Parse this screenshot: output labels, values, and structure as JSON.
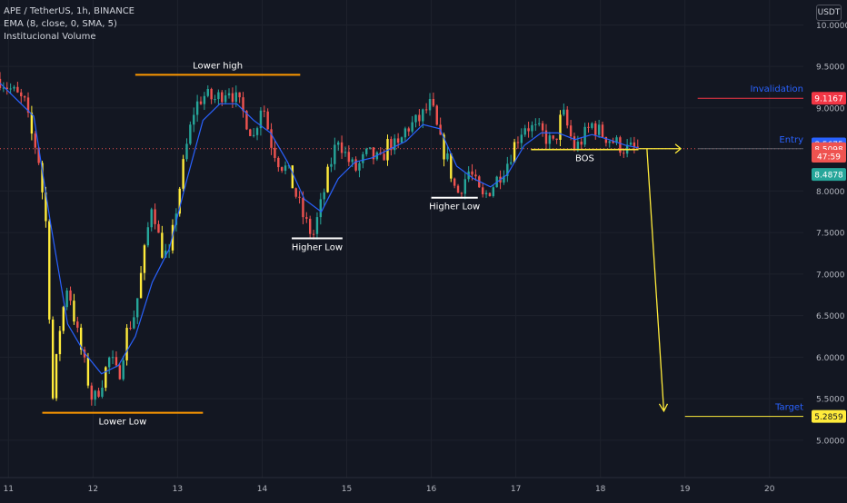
{
  "legend": {
    "symbol_line": "APE / TetherUS, 1h, BINANCE",
    "ema_line": "EMA (8, close, 0, SMA, 5)",
    "volume_line": "Institucional Volume"
  },
  "unit_label": "USDT",
  "colors": {
    "background": "#131722",
    "grid": "#1e222d",
    "up": "#26a69a",
    "down": "#ef5350",
    "highlight": "#ffeb3b",
    "ema": "#2962ff",
    "level": "#ff9800",
    "projection": "#ffeb3b",
    "invalidation": "#f23645",
    "price_line": "#ef5350"
  },
  "chart_data": {
    "type": "candlestick",
    "title": "APE / TetherUS, 1h, BINANCE",
    "x_ticks": [
      "11",
      "12",
      "13",
      "14",
      "15",
      "16",
      "17",
      "18",
      "19",
      "20"
    ],
    "y_ticks": [
      "10.0000",
      "9.5000",
      "9.0000",
      "8.0000",
      "7.5000",
      "7.0000",
      "6.5000",
      "6.0000",
      "5.5000",
      "5.0000"
    ],
    "y_tick_values": [
      10.0,
      9.5,
      9.0,
      8.0,
      7.5,
      7.0,
      6.5,
      6.0,
      5.5,
      5.0
    ],
    "ylim": [
      4.55,
      10.3
    ],
    "xlim": [
      10.9,
      20.4
    ],
    "grid": true,
    "ohlc_anchors": [
      [
        10.9,
        9.35
      ],
      [
        11.1,
        9.15
      ],
      [
        11.2,
        9.05
      ],
      [
        11.25,
        8.75
      ],
      [
        11.35,
        8.45
      ],
      [
        11.45,
        7.55
      ],
      [
        11.52,
        5.45
      ],
      [
        11.6,
        6.3
      ],
      [
        11.7,
        6.9
      ],
      [
        11.8,
        6.35
      ],
      [
        11.9,
        5.9
      ],
      [
        12.0,
        5.45
      ],
      [
        12.1,
        5.7
      ],
      [
        12.2,
        6.0
      ],
      [
        12.3,
        5.75
      ],
      [
        12.4,
        6.3
      ],
      [
        12.5,
        6.55
      ],
      [
        12.6,
        7.2
      ],
      [
        12.7,
        7.9
      ],
      [
        12.8,
        7.3
      ],
      [
        12.9,
        7.2
      ],
      [
        13.0,
        7.9
      ],
      [
        13.1,
        8.5
      ],
      [
        13.2,
        9.0
      ],
      [
        13.3,
        9.15
      ],
      [
        13.45,
        9.1
      ],
      [
        13.6,
        9.25
      ],
      [
        13.75,
        9.0
      ],
      [
        13.9,
        8.65
      ],
      [
        14.0,
        9.1
      ],
      [
        14.1,
        8.6
      ],
      [
        14.2,
        8.35
      ],
      [
        14.3,
        8.25
      ],
      [
        14.4,
        7.95
      ],
      [
        14.5,
        7.65
      ],
      [
        14.6,
        7.45
      ],
      [
        14.7,
        7.85
      ],
      [
        14.8,
        8.3
      ],
      [
        14.9,
        8.65
      ],
      [
        15.0,
        8.4
      ],
      [
        15.1,
        8.25
      ],
      [
        15.25,
        8.45
      ],
      [
        15.4,
        8.35
      ],
      [
        15.5,
        8.6
      ],
      [
        15.6,
        8.5
      ],
      [
        15.7,
        8.75
      ],
      [
        15.85,
        8.85
      ],
      [
        16.0,
        9.05
      ],
      [
        16.1,
        8.6
      ],
      [
        16.2,
        8.35
      ],
      [
        16.3,
        7.95
      ],
      [
        16.45,
        8.25
      ],
      [
        16.6,
        7.9
      ],
      [
        16.75,
        8.1
      ],
      [
        16.9,
        8.35
      ],
      [
        17.0,
        8.6
      ],
      [
        17.1,
        8.8
      ],
      [
        17.3,
        8.7
      ],
      [
        17.45,
        8.55
      ],
      [
        17.55,
        8.95
      ],
      [
        17.7,
        8.5
      ],
      [
        17.8,
        8.65
      ],
      [
        17.9,
        8.8
      ],
      [
        18.0,
        8.7
      ],
      [
        18.15,
        8.6
      ],
      [
        18.3,
        8.5
      ],
      [
        18.45,
        8.51
      ]
    ],
    "ema": [
      [
        10.9,
        9.3
      ],
      [
        11.3,
        8.9
      ],
      [
        11.5,
        7.6
      ],
      [
        11.7,
        6.4
      ],
      [
        11.9,
        6.05
      ],
      [
        12.1,
        5.8
      ],
      [
        12.3,
        5.9
      ],
      [
        12.5,
        6.25
      ],
      [
        12.7,
        6.9
      ],
      [
        12.9,
        7.3
      ],
      [
        13.1,
        8.1
      ],
      [
        13.3,
        8.85
      ],
      [
        13.5,
        9.05
      ],
      [
        13.7,
        9.05
      ],
      [
        13.9,
        8.85
      ],
      [
        14.1,
        8.7
      ],
      [
        14.3,
        8.35
      ],
      [
        14.5,
        7.9
      ],
      [
        14.7,
        7.75
      ],
      [
        14.9,
        8.15
      ],
      [
        15.1,
        8.35
      ],
      [
        15.3,
        8.4
      ],
      [
        15.5,
        8.5
      ],
      [
        15.7,
        8.6
      ],
      [
        15.9,
        8.8
      ],
      [
        16.1,
        8.75
      ],
      [
        16.3,
        8.3
      ],
      [
        16.5,
        8.15
      ],
      [
        16.7,
        8.05
      ],
      [
        16.9,
        8.2
      ],
      [
        17.1,
        8.55
      ],
      [
        17.3,
        8.7
      ],
      [
        17.5,
        8.7
      ],
      [
        17.7,
        8.62
      ],
      [
        17.9,
        8.68
      ],
      [
        18.1,
        8.62
      ],
      [
        18.3,
        8.55
      ],
      [
        18.45,
        8.52
      ]
    ],
    "annotations": [
      {
        "label": "Lower high",
        "kind": "level",
        "price": 9.4,
        "x_start": 12.5,
        "x_end": 14.45
      },
      {
        "label": "Lower Low",
        "kind": "level",
        "price": 5.33,
        "x_start": 11.4,
        "x_end": 13.3
      },
      {
        "label": "Higher Low",
        "kind": "level",
        "price": 7.43,
        "x_start": 14.35,
        "x_end": 14.95
      },
      {
        "label": "Higher Low",
        "kind": "level",
        "price": 7.92,
        "x_start": 16.0,
        "x_end": 16.55
      },
      {
        "label": "BOS",
        "kind": "level",
        "price": 8.5,
        "x_start": 17.18,
        "x_end": 18.45
      },
      {
        "label": "Invalidation",
        "kind": "line",
        "price": 9.1167,
        "x_start": 19.15,
        "x_end": 20.4
      },
      {
        "label": "Entry",
        "kind": "line",
        "price": 8.5098,
        "x_start": 19.15,
        "x_end": 20.4
      },
      {
        "label": "Target",
        "kind": "line",
        "price": 5.2859,
        "x_start": 19.0,
        "x_end": 20.4
      }
    ],
    "price_labels": [
      {
        "text": "9.1167",
        "price": 9.1167,
        "style": "invalidation"
      },
      {
        "text": "8.5675",
        "price": 8.5675,
        "style": "ema"
      },
      {
        "text": "8.5098",
        "price": 8.5098,
        "style": "last"
      },
      {
        "text": "47:59",
        "price": 8.42,
        "style": "countdown"
      },
      {
        "text": "8.4878",
        "price": 8.2,
        "style": "up"
      },
      {
        "text": "5.2859",
        "price": 5.2859,
        "style": "target"
      }
    ],
    "last_price": 8.5098
  }
}
